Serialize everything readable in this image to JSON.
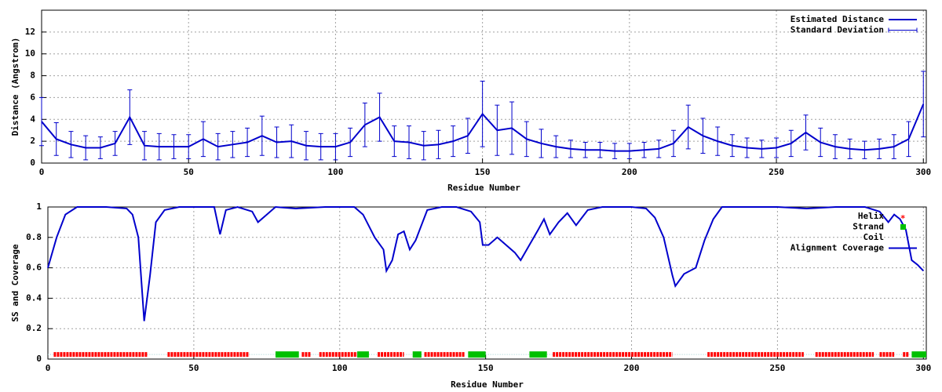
{
  "chart_data": [
    {
      "type": "line",
      "xlabel": "Residue Number",
      "ylabel": "Distance (Angstrom)",
      "xlim": [
        0,
        301
      ],
      "ylim": [
        0,
        14
      ],
      "xticks": [
        0,
        50,
        100,
        150,
        200,
        250,
        300
      ],
      "yticks": [
        0,
        2,
        4,
        6,
        8,
        10,
        12
      ],
      "grid": true,
      "legend": "top-right",
      "x": [
        0,
        5,
        10,
        15,
        20,
        25,
        30,
        35,
        40,
        45,
        50,
        55,
        60,
        65,
        70,
        75,
        80,
        85,
        90,
        95,
        100,
        105,
        110,
        115,
        120,
        125,
        130,
        135,
        140,
        145,
        150,
        155,
        160,
        165,
        170,
        175,
        180,
        185,
        190,
        195,
        200,
        205,
        210,
        215,
        220,
        225,
        230,
        235,
        240,
        245,
        250,
        255,
        260,
        265,
        270,
        275,
        280,
        285,
        290,
        295,
        300
      ],
      "series": [
        {
          "name": "Estimated Distance",
          "color": "#0000cc",
          "values": [
            3.8,
            2.2,
            1.7,
            1.4,
            1.4,
            1.8,
            4.2,
            1.6,
            1.5,
            1.5,
            1.5,
            2.2,
            1.5,
            1.7,
            1.9,
            2.5,
            1.9,
            2.0,
            1.6,
            1.5,
            1.5,
            1.9,
            3.5,
            4.2,
            2.0,
            1.9,
            1.6,
            1.7,
            2.0,
            2.5,
            4.5,
            3.0,
            3.2,
            2.2,
            1.8,
            1.5,
            1.3,
            1.2,
            1.2,
            1.1,
            1.1,
            1.2,
            1.3,
            1.8,
            3.3,
            2.5,
            2.0,
            1.6,
            1.4,
            1.3,
            1.4,
            1.8,
            2.8,
            1.9,
            1.5,
            1.3,
            1.2,
            1.3,
            1.5,
            2.2,
            5.4
          ]
        }
      ],
      "error_bars": {
        "name": "Standard Deviation",
        "color": "#0000cc",
        "values": [
          2.2,
          1.5,
          1.2,
          1.1,
          1.0,
          1.1,
          2.5,
          1.3,
          1.2,
          1.1,
          1.1,
          1.6,
          1.2,
          1.2,
          1.3,
          1.8,
          1.4,
          1.5,
          1.3,
          1.2,
          1.2,
          1.3,
          2.0,
          2.2,
          1.4,
          1.5,
          1.3,
          1.3,
          1.4,
          1.6,
          3.0,
          2.3,
          2.4,
          1.6,
          1.3,
          1.0,
          0.8,
          0.7,
          0.7,
          0.7,
          0.7,
          0.7,
          0.8,
          1.2,
          2.0,
          1.6,
          1.3,
          1.0,
          0.9,
          0.8,
          0.9,
          1.2,
          1.6,
          1.3,
          1.1,
          0.9,
          0.8,
          0.9,
          1.1,
          1.6,
          3.0
        ]
      }
    },
    {
      "type": "line",
      "xlabel": "Residue Number",
      "ylabel": "SS and Coverage",
      "xlim": [
        0,
        301
      ],
      "ylim": [
        0,
        1
      ],
      "xticks": [
        0,
        50,
        100,
        150,
        200,
        250,
        300
      ],
      "yticks": [
        0,
        0.2,
        0.4,
        0.6,
        0.8,
        1
      ],
      "grid": true,
      "legend": "top-right",
      "ss_level": 0.03,
      "ss": [
        {
          "name": "Helix",
          "color": "#ff0000",
          "ranges": [
            [
              2,
              34
            ],
            [
              41,
              69
            ],
            [
              87,
              90
            ],
            [
              93,
              106
            ],
            [
              113,
              122
            ],
            [
              129,
              143
            ],
            [
              173,
              214
            ],
            [
              226,
              259
            ],
            [
              263,
              283
            ],
            [
              285,
              290
            ],
            [
              293,
              295
            ]
          ]
        },
        {
          "name": "Strand",
          "color": "#00c000",
          "ranges": [
            [
              78,
              86
            ],
            [
              106,
              110
            ],
            [
              125,
              128
            ],
            [
              144,
              150
            ],
            [
              165,
              171
            ],
            [
              296,
              301
            ]
          ]
        },
        {
          "name": "Coil",
          "color": "#9ad0d0",
          "ranges": [
            [
              0,
              2
            ],
            [
              34,
              41
            ],
            [
              69,
              78
            ],
            [
              90,
              93
            ],
            [
              110,
              113
            ],
            [
              122,
              125
            ],
            [
              128,
              129
            ],
            [
              150,
              165
            ],
            [
              171,
              173
            ],
            [
              214,
              226
            ],
            [
              259,
              263
            ],
            [
              283,
              285
            ],
            [
              290,
              293
            ],
            [
              295,
              296
            ]
          ]
        }
      ],
      "x": [
        0,
        3,
        6,
        10,
        20,
        27,
        29,
        31,
        33,
        35,
        37,
        40,
        45,
        55,
        57,
        59,
        61,
        65,
        70,
        72,
        75,
        78,
        85,
        95,
        105,
        108,
        112,
        115,
        116,
        118,
        120,
        122,
        124,
        126,
        130,
        135,
        140,
        145,
        148,
        149,
        151,
        154,
        160,
        162,
        165,
        168,
        170,
        172,
        175,
        178,
        181,
        185,
        190,
        200,
        205,
        208,
        211,
        214,
        215,
        218,
        222,
        225,
        228,
        231,
        240,
        250,
        260,
        270,
        280,
        285,
        288,
        290,
        292,
        294,
        296,
        298,
        300
      ],
      "series": [
        {
          "name": "Alignment Coverage",
          "color": "#0000cc",
          "values": [
            0.6,
            0.8,
            0.95,
            1,
            1,
            0.99,
            0.95,
            0.8,
            0.25,
            0.55,
            0.9,
            0.98,
            1,
            1,
            1,
            0.82,
            0.98,
            1,
            0.97,
            0.9,
            0.95,
            1,
            0.99,
            1,
            1,
            0.95,
            0.8,
            0.72,
            0.58,
            0.65,
            0.82,
            0.84,
            0.72,
            0.78,
            0.98,
            1,
            1,
            0.97,
            0.9,
            0.75,
            0.75,
            0.8,
            0.7,
            0.65,
            0.75,
            0.85,
            0.92,
            0.82,
            0.9,
            0.96,
            0.88,
            0.98,
            1,
            1,
            0.99,
            0.93,
            0.8,
            0.55,
            0.48,
            0.56,
            0.6,
            0.78,
            0.92,
            1,
            1,
            1,
            0.99,
            1,
            1,
            0.97,
            0.9,
            0.95,
            0.92,
            0.85,
            0.65,
            0.62,
            0.58
          ]
        }
      ]
    }
  ]
}
